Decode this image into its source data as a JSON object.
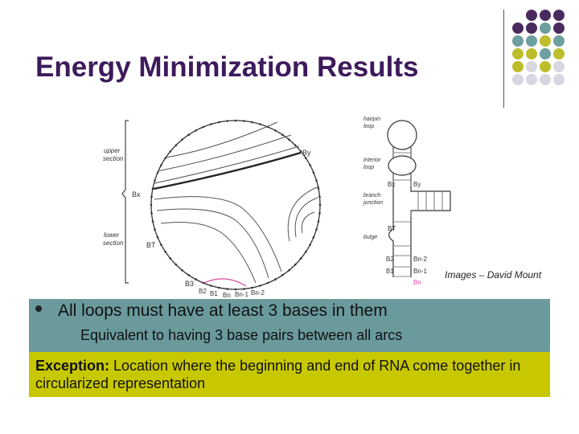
{
  "slide": {
    "title": "Energy Minimization Results",
    "credit": "Images – David Mount",
    "bullet_main": "All loops must have at least 3 bases in them",
    "bullet_sub": "Equivalent to having 3 base pairs between all arcs",
    "exception_label": "Exception:",
    "exception_text": " Location where the beginning and end of RNA come together in circularized representation"
  },
  "diagram": {
    "left_labels": {
      "upper_section": [
        "upper",
        "section"
      ],
      "bx": "Bx",
      "lower_section": [
        "lower",
        "section"
      ],
      "bt": "BT",
      "bottom": [
        "B3",
        "B2",
        "B1",
        "Bn",
        "Bn-1",
        "Bn-2"
      ],
      "by": "By"
    },
    "right_labels": {
      "hairpin": [
        "hairpin",
        "loop"
      ],
      "interior": [
        "interior",
        "loop"
      ],
      "branch": [
        "branch",
        "junction"
      ],
      "bulge": "bulge",
      "bx": "Bx",
      "by": "By",
      "bt": "BT",
      "b2": "B2",
      "b1": "B1",
      "bn2": "Bn-2",
      "bn1": "Bn-1",
      "bn": "Bn"
    }
  },
  "colors": {
    "title": "#3d1a5b",
    "purple_dot": "#4a2a5e",
    "teal_dot": "#6d9ea0",
    "olive_dot": "#bdbe2c",
    "grey_dot": "#d8d6e0",
    "teal_band": "#6a9a9c",
    "olive_band": "#c8c800"
  }
}
